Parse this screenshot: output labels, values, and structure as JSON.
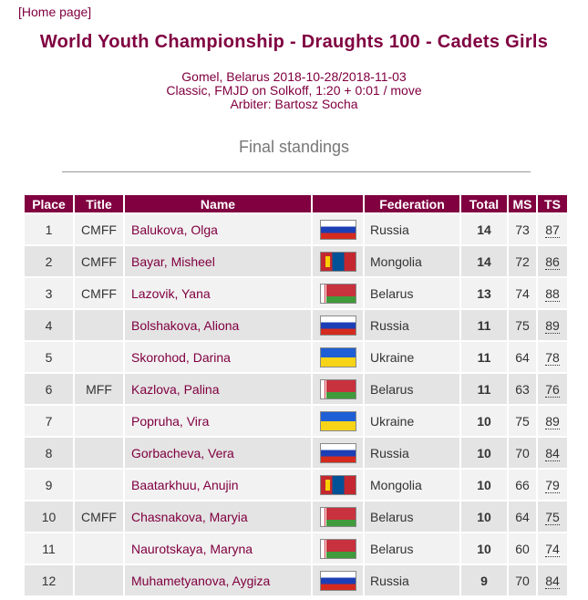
{
  "nav": {
    "home_link": "[Home page]"
  },
  "title": "World Youth Championship - Draughts 100 - Cadets Girls",
  "meta": {
    "line1": "Gomel, Belarus 2018-10-28/2018-11-03",
    "line2": "Classic, FMJD on Solkoff, 1:20 + 0:01 / move",
    "line3": "Arbiter: Bartosz Socha"
  },
  "section_title": "Final standings",
  "table": {
    "headers": {
      "place": "Place",
      "title": "Title",
      "name": "Name",
      "flag": "",
      "federation": "Federation",
      "total": "Total",
      "ms": "MS",
      "ts": "TS"
    },
    "rows": [
      {
        "place": "1",
        "title": "CMFF",
        "name": "Balukova, Olga",
        "flag": "russia-flag-icon",
        "federation": "Russia",
        "total": "14",
        "ms": "73",
        "ts": "87"
      },
      {
        "place": "2",
        "title": "CMFF",
        "name": "Bayar, Misheel",
        "flag": "mongolia-flag-icon",
        "federation": "Mongolia",
        "total": "14",
        "ms": "72",
        "ts": "86"
      },
      {
        "place": "3",
        "title": "CMFF",
        "name": "Lazovik, Yana",
        "flag": "belarus-flag-icon",
        "federation": "Belarus",
        "total": "13",
        "ms": "74",
        "ts": "88"
      },
      {
        "place": "4",
        "title": "",
        "name": "Bolshakova, Aliona",
        "flag": "russia-flag-icon",
        "federation": "Russia",
        "total": "11",
        "ms": "75",
        "ts": "89"
      },
      {
        "place": "5",
        "title": "",
        "name": "Skorohod, Darina",
        "flag": "ukraine-flag-icon",
        "federation": "Ukraine",
        "total": "11",
        "ms": "64",
        "ts": "78"
      },
      {
        "place": "6",
        "title": "MFF",
        "name": "Kazlova, Palina",
        "flag": "belarus-flag-icon",
        "federation": "Belarus",
        "total": "11",
        "ms": "63",
        "ts": "76"
      },
      {
        "place": "7",
        "title": "",
        "name": "Popruha, Vira",
        "flag": "ukraine-flag-icon",
        "federation": "Ukraine",
        "total": "10",
        "ms": "75",
        "ts": "89"
      },
      {
        "place": "8",
        "title": "",
        "name": "Gorbacheva, Vera",
        "flag": "russia-flag-icon",
        "federation": "Russia",
        "total": "10",
        "ms": "70",
        "ts": "84"
      },
      {
        "place": "9",
        "title": "",
        "name": "Baatarkhuu, Anujin",
        "flag": "mongolia-flag-icon",
        "federation": "Mongolia",
        "total": "10",
        "ms": "66",
        "ts": "79"
      },
      {
        "place": "10",
        "title": "CMFF",
        "name": "Chasnakova, Maryia",
        "flag": "belarus-flag-icon",
        "federation": "Belarus",
        "total": "10",
        "ms": "64",
        "ts": "75"
      },
      {
        "place": "11",
        "title": "",
        "name": "Naurotskaya, Maryna",
        "flag": "belarus-flag-icon",
        "federation": "Belarus",
        "total": "10",
        "ms": "60",
        "ts": "74"
      },
      {
        "place": "12",
        "title": "",
        "name": "Muhametyanova, Aygiza",
        "flag": "russia-flag-icon",
        "federation": "Russia",
        "total": "9",
        "ms": "70",
        "ts": "84"
      }
    ]
  },
  "colors": {
    "accent": "#800040",
    "row_light": "#f2f2f2",
    "row_dark": "#e4e4e4"
  }
}
